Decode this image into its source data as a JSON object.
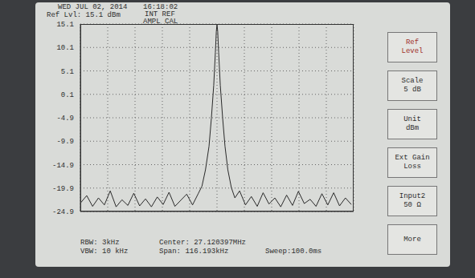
{
  "chart_data": {
    "type": "line",
    "x": [
      27.0625,
      27.065,
      27.0675,
      27.07,
      27.0725,
      27.075,
      27.0775,
      27.08,
      27.0825,
      27.085,
      27.0875,
      27.09,
      27.0925,
      27.095,
      27.0975,
      27.1,
      27.1025,
      27.105,
      27.1075,
      27.11,
      27.1125,
      27.114,
      27.1155,
      27.117,
      27.118,
      27.119,
      27.1197,
      27.1201,
      27.1204,
      27.1207,
      27.1211,
      27.1218,
      27.1228,
      27.1238,
      27.125,
      27.1265,
      27.128,
      27.13,
      27.1325,
      27.135,
      27.1375,
      27.14,
      27.1425,
      27.145,
      27.1475,
      27.15,
      27.1525,
      27.155,
      27.1575,
      27.16,
      27.1625,
      27.165,
      27.1675,
      27.17,
      27.1725,
      27.175,
      27.1775
    ],
    "values": [
      -23.0,
      -21.5,
      -23.8,
      -22.0,
      -23.5,
      -20.5,
      -23.9,
      -22.4,
      -23.6,
      -21.0,
      -23.7,
      -22.2,
      -23.9,
      -21.8,
      -23.4,
      -20.8,
      -23.8,
      -22.5,
      -21.2,
      -23.5,
      -21.0,
      -19.5,
      -16.0,
      -11.0,
      -5.0,
      2.0,
      9.0,
      13.5,
      15.0,
      13.5,
      9.0,
      2.0,
      -5.0,
      -11.0,
      -16.0,
      -19.8,
      -22.0,
      -20.5,
      -23.5,
      -21.7,
      -23.8,
      -20.9,
      -23.3,
      -22.0,
      -23.9,
      -21.4,
      -23.6,
      -20.6,
      -23.2,
      -22.3,
      -23.8,
      -21.1,
      -23.5,
      -20.9,
      -23.7,
      -22.0,
      -23.4
    ],
    "color": "#2a2a2a",
    "xlim": [
      27.0623005,
      27.1784935
    ],
    "ylim": [
      -24.9,
      15.1
    ],
    "yticks": [
      15.1,
      10.1,
      5.1,
      0.1,
      -4.9,
      -9.9,
      -14.9,
      -19.9,
      -24.9
    ],
    "grid": true,
    "tick_labels": "y"
  },
  "screen": {
    "header": [
      "WED JUL 02, 2014",
      "16:18:02",
      "Ref Lvl: 15.1 dBm",
      "INT REF",
      "AMPL CAL"
    ],
    "footer": [
      "RBW: 3kHz",
      "VBW: 10 kHz",
      "Center: 27.120397MHz",
      "Span: 116.193kHz",
      "Sweep:100.0ms"
    ],
    "menu": [
      [
        "Ref",
        "Level"
      ],
      [
        "Scale",
        "5 dB"
      ],
      [
        "Unit",
        "dBm"
      ],
      [
        "Ext Gain",
        "Loss"
      ],
      [
        "Input2",
        "50 Ω"
      ],
      [
        "More"
      ]
    ]
  }
}
